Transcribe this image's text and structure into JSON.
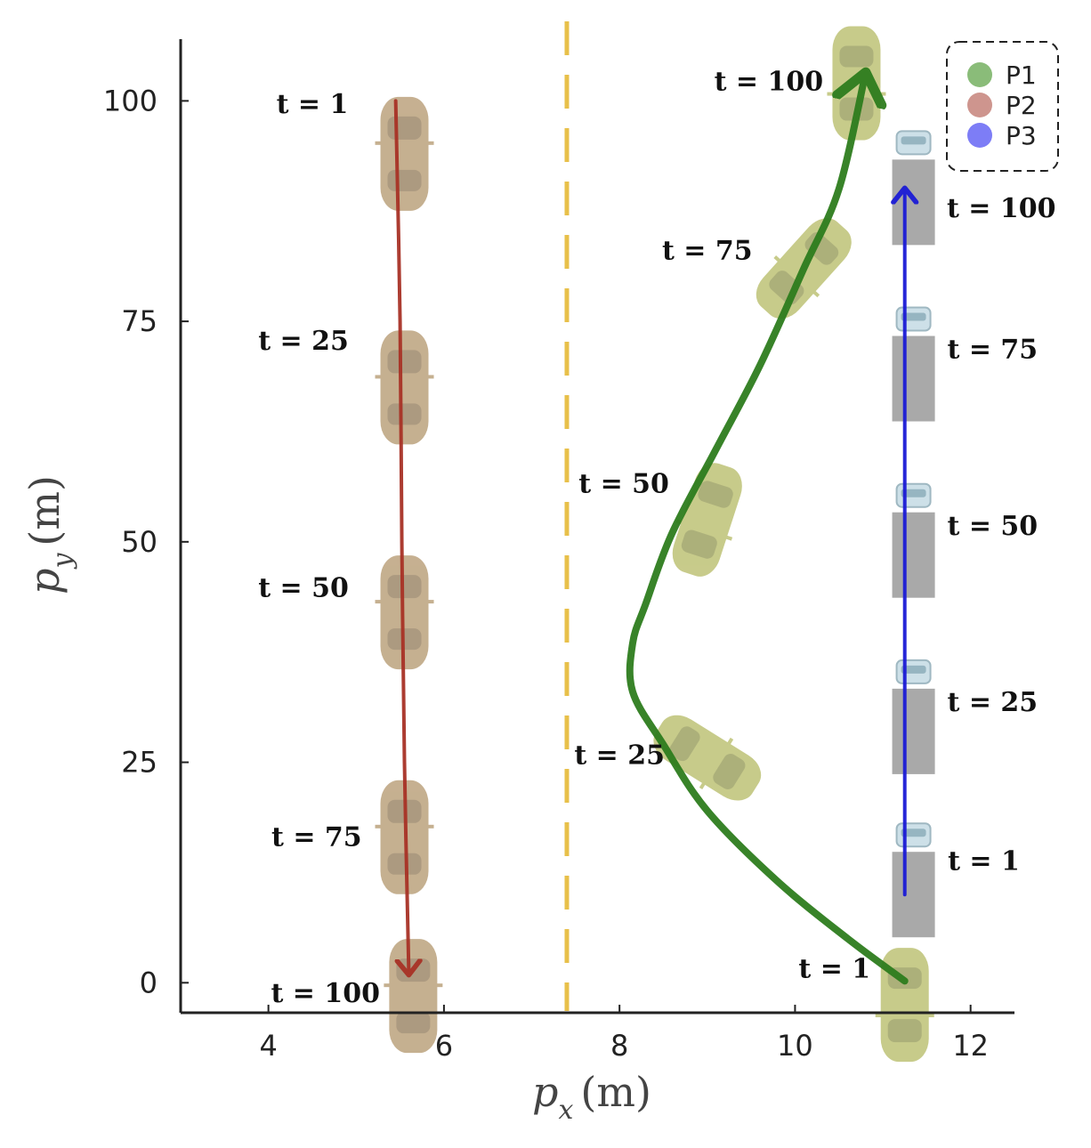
{
  "chart_data": {
    "type": "line",
    "title": "",
    "xlabel": "p_x (m)",
    "ylabel": "p_y (m)",
    "xlabel_parts": [
      "p",
      "x",
      "(m)"
    ],
    "ylabel_parts": [
      "p",
      "y",
      "(m)"
    ],
    "xlim": [
      3,
      12.5
    ],
    "ylim": [
      -3.4,
      107
    ],
    "xticks": [
      4,
      6,
      8,
      10,
      12
    ],
    "yticks": [
      0,
      25,
      50,
      75,
      100
    ],
    "grid": false,
    "legend_position": "top-right",
    "lane_divider": {
      "x": 7.4,
      "color": "#e8c04a",
      "style": "dashed"
    },
    "series": [
      {
        "name": "P1",
        "color": "#2e7d1e",
        "marker_color": "#7db56a",
        "points": [
          [
            11.25,
            0.2
          ],
          [
            10.6,
            5
          ],
          [
            9.8,
            11.5
          ],
          [
            9.0,
            19.5
          ],
          [
            8.5,
            27
          ],
          [
            8.15,
            33
          ],
          [
            8.15,
            38.5
          ],
          [
            8.3,
            43
          ],
          [
            8.6,
            51
          ],
          [
            9.1,
            60.5
          ],
          [
            9.6,
            70
          ],
          [
            10.1,
            81
          ],
          [
            10.5,
            90
          ],
          [
            10.8,
            103
          ]
        ],
        "vehicle": "car",
        "vehicle_color": "#b8bd6a",
        "snapshots": [
          {
            "t": "t = 1",
            "x": 11.25,
            "y": -2.5,
            "angle": 0,
            "label_x": 10.45,
            "label_y": 0.6
          },
          {
            "t": "t = 25",
            "x": 9.0,
            "y": 25.5,
            "angle": -58,
            "label_x": 8.0,
            "label_y": 24.8
          },
          {
            "t": "t = 50",
            "x": 9.0,
            "y": 52.5,
            "angle": 18,
            "label_x": 8.05,
            "label_y": 55.6
          },
          {
            "t": "t = 75",
            "x": 10.1,
            "y": 81,
            "angle": 42,
            "label_x": 9.0,
            "label_y": 82
          },
          {
            "t": "t = 100",
            "x": 10.7,
            "y": 102,
            "angle": 0,
            "label_x": 9.7,
            "label_y": 101.2
          }
        ]
      },
      {
        "name": "P2",
        "color": "#a83226",
        "marker_color": "#c98a82",
        "points": [
          [
            5.45,
            100
          ],
          [
            5.5,
            75
          ],
          [
            5.52,
            50
          ],
          [
            5.55,
            25
          ],
          [
            5.6,
            1
          ]
        ],
        "vehicle": "car",
        "vehicle_color": "#b69a72",
        "snapshots": [
          {
            "t": "t = 1",
            "x": 5.55,
            "y": 94,
            "angle": 180,
            "label_x": 4.5,
            "label_y": 98.6
          },
          {
            "t": "t = 25",
            "x": 5.55,
            "y": 67.5,
            "angle": 180,
            "label_x": 4.4,
            "label_y": 71.8
          },
          {
            "t": "t = 50",
            "x": 5.55,
            "y": 42,
            "angle": 180,
            "label_x": 4.4,
            "label_y": 43.8
          },
          {
            "t": "t = 75",
            "x": 5.55,
            "y": 16.5,
            "angle": 180,
            "label_x": 4.55,
            "label_y": 15.5
          },
          {
            "t": "t = 100",
            "x": 5.65,
            "y": -1.5,
            "angle": 180,
            "label_x": 4.65,
            "label_y": -2.2
          }
        ]
      },
      {
        "name": "P3",
        "color": "#1b1bd6",
        "marker_color": "#6f6ff5",
        "points": [
          [
            11.25,
            10
          ],
          [
            11.25,
            90
          ]
        ],
        "vehicle": "truck",
        "vehicle_color": "#9a9a9a",
        "snapshots": [
          {
            "t": "t = 1",
            "x": 11.35,
            "y": 10,
            "label_x": 12.15,
            "label_y": 12.8
          },
          {
            "t": "t = 25",
            "x": 11.35,
            "y": 28.5,
            "label_x": 12.25,
            "label_y": 30.8
          },
          {
            "t": "t = 50",
            "x": 11.35,
            "y": 48.5,
            "label_x": 12.25,
            "label_y": 50.8
          },
          {
            "t": "t = 75",
            "x": 11.35,
            "y": 68.5,
            "label_x": 12.25,
            "label_y": 70.8
          },
          {
            "t": "t = 100",
            "x": 11.35,
            "y": 88.5,
            "label_x": 12.35,
            "label_y": 86.8
          }
        ]
      }
    ]
  }
}
